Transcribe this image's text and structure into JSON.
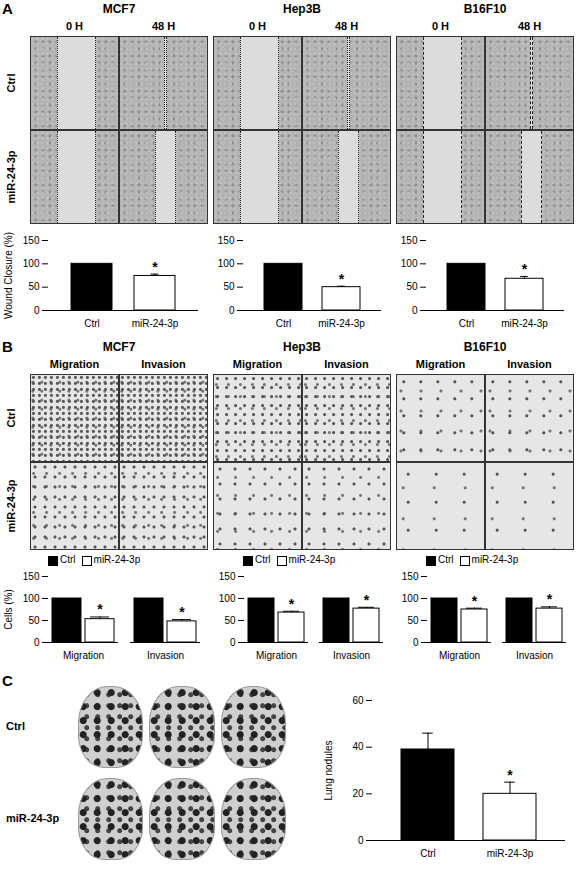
{
  "chart_data": [
    {
      "type": "bar",
      "ylabel": "Wound Closure (%)",
      "categories": [
        "Ctrl",
        "miR-24-3p"
      ],
      "values": [
        100,
        74
      ],
      "errors": [
        null,
        4
      ],
      "colors": [
        "#000000",
        "#ffffff"
      ],
      "ylim": [
        0,
        150
      ],
      "yticks": [
        0,
        50,
        100,
        150
      ],
      "annotations": [
        {
          "category": "miR-24-3p",
          "text": "*"
        }
      ]
    },
    {
      "type": "bar",
      "categories": [
        "Ctrl",
        "miR-24-3p"
      ],
      "values": [
        100,
        50
      ],
      "errors": [
        null,
        2
      ],
      "colors": [
        "#000000",
        "#ffffff"
      ],
      "ylim": [
        0,
        150
      ],
      "yticks": [
        0,
        50,
        100,
        150
      ],
      "annotations": [
        {
          "category": "miR-24-3p",
          "text": "*"
        }
      ]
    },
    {
      "type": "bar",
      "categories": [
        "Ctrl",
        "miR-24-3p"
      ],
      "values": [
        100,
        68
      ],
      "errors": [
        null,
        5
      ],
      "colors": [
        "#000000",
        "#ffffff"
      ],
      "ylim": [
        0,
        150
      ],
      "yticks": [
        0,
        50,
        100,
        150
      ],
      "annotations": [
        {
          "category": "miR-24-3p",
          "text": "*"
        }
      ]
    },
    {
      "type": "bar",
      "ylabel": "Cells (%)",
      "categories": [
        "Migration",
        "Invasion"
      ],
      "legend": "top",
      "series": [
        {
          "name": "Ctrl",
          "color": "#000000",
          "values": [
            100,
            100
          ],
          "errors": [
            null,
            null
          ]
        },
        {
          "name": "miR-24-3p",
          "color": "#ffffff",
          "values": [
            53,
            48
          ],
          "errors": [
            5,
            4
          ]
        }
      ],
      "ylim": [
        0,
        150
      ],
      "yticks": [
        0,
        50,
        100,
        150
      ],
      "annotations": [
        {
          "category": "Migration",
          "series": "miR-24-3p",
          "text": "*"
        },
        {
          "category": "Invasion",
          "series": "miR-24-3p",
          "text": "*"
        }
      ]
    },
    {
      "type": "bar",
      "categories": [
        "Migration",
        "Invasion"
      ],
      "legend": "top",
      "series": [
        {
          "name": "Ctrl",
          "color": "#000000",
          "values": [
            100,
            100
          ],
          "errors": [
            null,
            null
          ]
        },
        {
          "name": "miR-24-3p",
          "color": "#ffffff",
          "values": [
            68,
            77
          ],
          "errors": [
            3,
            3
          ]
        }
      ],
      "ylim": [
        0,
        150
      ],
      "yticks": [
        0,
        50,
        100,
        150
      ],
      "annotations": [
        {
          "category": "Migration",
          "series": "miR-24-3p",
          "text": "*"
        },
        {
          "category": "Invasion",
          "series": "miR-24-3p",
          "text": "*"
        }
      ]
    },
    {
      "type": "bar",
      "categories": [
        "Migration",
        "Invasion"
      ],
      "legend": "top",
      "series": [
        {
          "name": "Ctrl",
          "color": "#000000",
          "values": [
            100,
            100
          ],
          "errors": [
            null,
            null
          ]
        },
        {
          "name": "miR-24-3p",
          "color": "#ffffff",
          "values": [
            75,
            77
          ],
          "errors": [
            3,
            4
          ]
        }
      ],
      "ylim": [
        0,
        150
      ],
      "yticks": [
        0,
        50,
        100,
        150
      ],
      "annotations": [
        {
          "category": "Migration",
          "series": "miR-24-3p",
          "text": "*"
        },
        {
          "category": "Invasion",
          "series": "miR-24-3p",
          "text": "*"
        }
      ]
    },
    {
      "type": "bar",
      "ylabel": "Lung nodules",
      "categories": [
        "Ctrl",
        "miR-24-3p"
      ],
      "values": [
        39,
        20
      ],
      "errors": [
        7,
        5
      ],
      "colors": [
        "#000000",
        "#ffffff"
      ],
      "ylim": [
        0,
        60
      ],
      "yticks": [
        0,
        20,
        40,
        60
      ],
      "annotations": [
        {
          "category": "miR-24-3p",
          "text": "*"
        }
      ]
    }
  ],
  "figure": {
    "panels": [
      {
        "label": "A",
        "rows": [
          "Ctrl",
          "miR-24-3p"
        ],
        "columns": [
          {
            "title": "MCF7",
            "subcolumns": [
              "0 H",
              "48 H"
            ]
          },
          {
            "title": "Hep3B",
            "subcolumns": [
              "0 H",
              "48 H"
            ]
          },
          {
            "title": "B16F10",
            "subcolumns": [
              "0 H",
              "48 H"
            ]
          }
        ]
      },
      {
        "label": "B",
        "rows": [
          "Ctrl",
          "miR-24-3p"
        ],
        "columns": [
          {
            "title": "MCF7",
            "subcolumns": [
              "Migration",
              "Invasion"
            ]
          },
          {
            "title": "Hep3B",
            "subcolumns": [
              "Migration",
              "Invasion"
            ]
          },
          {
            "title": "B16F10",
            "subcolumns": [
              "Migration",
              "Invasion"
            ]
          }
        ]
      },
      {
        "label": "C",
        "rows": [
          "Ctrl",
          "miR-24-3p"
        ]
      }
    ]
  }
}
